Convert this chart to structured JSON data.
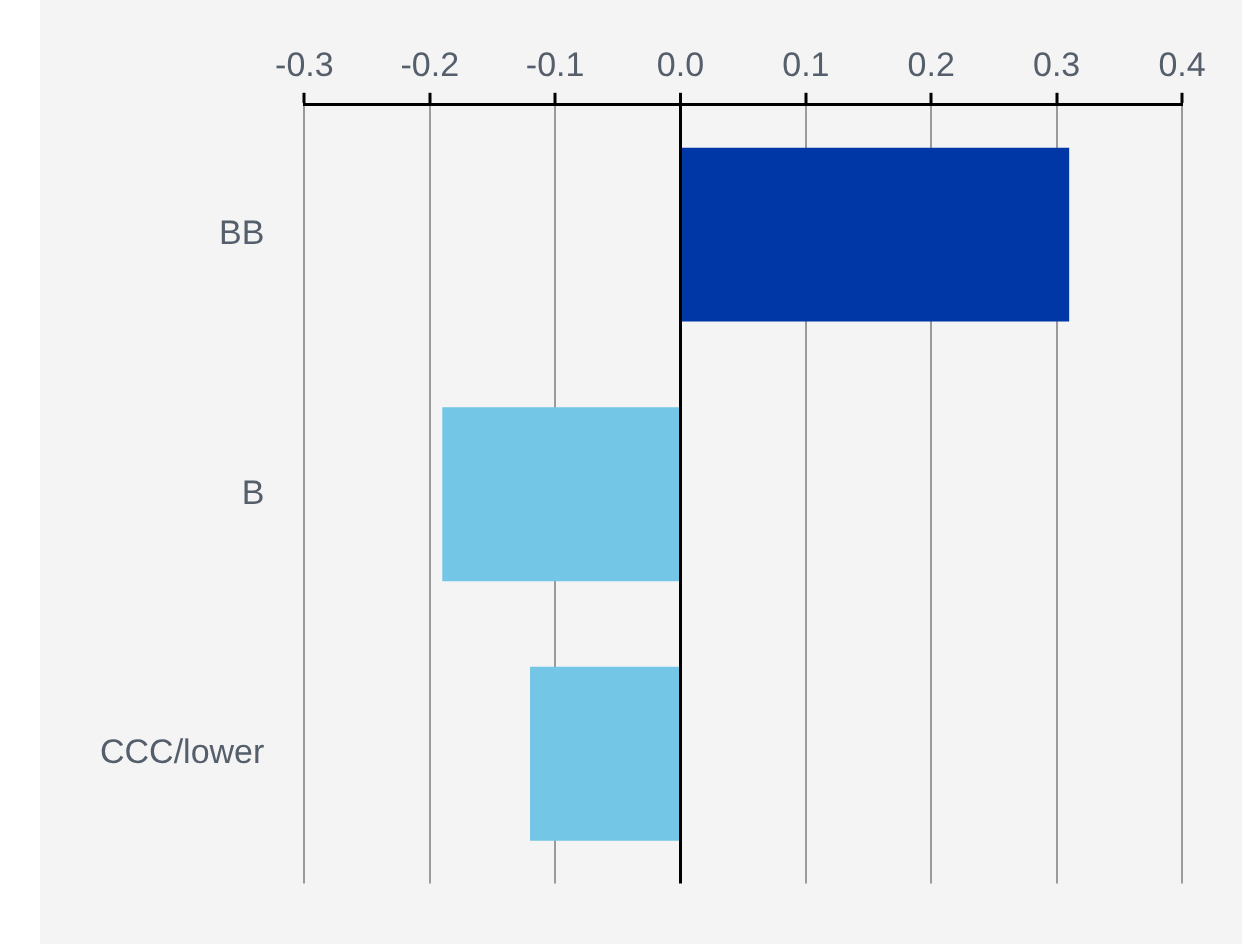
{
  "chart_data": {
    "type": "bar",
    "orientation": "horizontal",
    "categories": [
      "BB",
      "B",
      "CCC/lower"
    ],
    "values": [
      0.31,
      -0.19,
      -0.12
    ],
    "colors": [
      "#0037a6",
      "#73c6e6",
      "#73c6e6"
    ],
    "xlim": [
      -0.3,
      0.4
    ],
    "xticks": [
      {
        "value": -0.3,
        "label": "-0.3"
      },
      {
        "value": -0.2,
        "label": "-0.2"
      },
      {
        "value": -0.1,
        "label": "-0.1"
      },
      {
        "value": 0,
        "label": "0.0"
      },
      {
        "value": 0.1,
        "label": "0.1"
      },
      {
        "value": 0.2,
        "label": "0.2"
      },
      {
        "value": 0.3,
        "label": "0.3"
      },
      {
        "value": 0.4,
        "label": "0.4"
      }
    ],
    "grid": "x",
    "legend": false
  }
}
